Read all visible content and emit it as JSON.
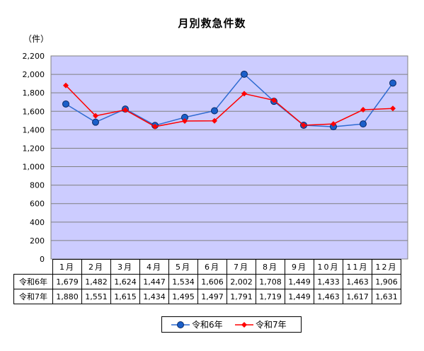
{
  "chart_data": {
    "type": "line",
    "title": "月別救急件数",
    "ylabel": "（件）",
    "xlabel": "",
    "categories": [
      "1月",
      "2月",
      "3月",
      "4月",
      "5月",
      "6月",
      "7月",
      "8月",
      "9月",
      "10月",
      "11月",
      "12月"
    ],
    "ylim": [
      0,
      2200
    ],
    "yticks": [
      0,
      200,
      400,
      600,
      800,
      1000,
      1200,
      1400,
      1600,
      1800,
      2000,
      2200
    ],
    "ytick_labels": [
      "0",
      "200",
      "400",
      "600",
      "800",
      "1,000",
      "1,200",
      "1,400",
      "1,600",
      "1,800",
      "2,000",
      "2,200"
    ],
    "grid": true,
    "legend_position": "bottom",
    "plot_background": "#ccccff",
    "series": [
      {
        "name": "令和6年",
        "color": "#2e6bd1",
        "marker": "circle",
        "values": [
          1679,
          1482,
          1624,
          1447,
          1534,
          1606,
          2002,
          1708,
          1449,
          1433,
          1463,
          1906
        ],
        "labels": [
          "1,679",
          "1,482",
          "1,624",
          "1,447",
          "1,534",
          "1,606",
          "2,002",
          "1,708",
          "1,449",
          "1,433",
          "1,463",
          "1,906"
        ]
      },
      {
        "name": "令和7年",
        "color": "#ff0000",
        "marker": "diamond",
        "values": [
          1880,
          1551,
          1615,
          1434,
          1495,
          1497,
          1791,
          1719,
          1449,
          1463,
          1617,
          1631
        ],
        "labels": [
          "1,880",
          "1,551",
          "1,615",
          "1,434",
          "1,495",
          "1,497",
          "1,791",
          "1,719",
          "1,449",
          "1,463",
          "1,617",
          "1,631"
        ]
      }
    ]
  }
}
